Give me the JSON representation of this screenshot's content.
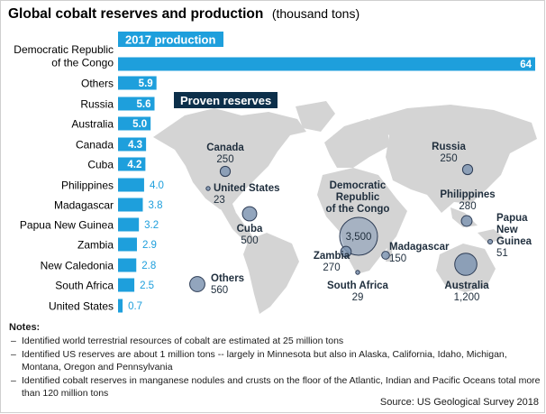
{
  "title": "Global cobalt reserves and production",
  "subtitle": "(thousand tons)",
  "colors": {
    "production": "#1e9fdc",
    "banner_reserves": "#0c2f4a",
    "map_land": "#d4d4d4",
    "bubble_fill": "#7f95b2",
    "bubble_stroke": "#2d3c55"
  },
  "chart_data": [
    {
      "type": "bar",
      "orientation": "horizontal",
      "title": "2017 production",
      "categories": [
        "Democratic Republic of the Congo",
        "Others",
        "Russia",
        "Australia",
        "Canada",
        "Cuba",
        "Philippines",
        "Madagascar",
        "Papua New Guinea",
        "Zambia",
        "New Caledonia",
        "South Africa",
        "United States"
      ],
      "category_lines": [
        [
          "Democratic Republic",
          "of the Congo"
        ],
        [
          "Others"
        ],
        [
          "Russia"
        ],
        [
          "Australia"
        ],
        [
          "Canada"
        ],
        [
          "Cuba"
        ],
        [
          "Philippines"
        ],
        [
          "Madagascar"
        ],
        [
          "Papua New Guinea"
        ],
        [
          "Zambia"
        ],
        [
          "New Caledonia"
        ],
        [
          "South Africa"
        ],
        [
          "United States"
        ]
      ],
      "values": [
        64,
        5.9,
        5.6,
        5.0,
        4.3,
        4.2,
        4.0,
        3.8,
        3.2,
        2.9,
        2.8,
        2.5,
        0.7
      ],
      "value_labels": [
        "64",
        "5.9",
        "5.6",
        "5.0",
        "4.3",
        "4.2",
        "4.0",
        "3.8",
        "3.2",
        "2.9",
        "2.8",
        "2.5",
        "0.7"
      ]
    },
    {
      "type": "scatter",
      "subtype": "bubble map",
      "title": "Proven reserves",
      "points": [
        {
          "name_lines": [
            "Canada"
          ],
          "value": 250,
          "value_label": "250"
        },
        {
          "name_lines": [
            "United States"
          ],
          "value": 23,
          "value_label": "23"
        },
        {
          "name_lines": [
            "Cuba"
          ],
          "value": 500,
          "value_label": "500"
        },
        {
          "name_lines": [
            "Others"
          ],
          "value": 560,
          "value_label": "560"
        },
        {
          "name_lines": [
            "Russia"
          ],
          "value": 250,
          "value_label": "250"
        },
        {
          "name_lines": [
            "Democratic",
            "Republic",
            "of the Congo"
          ],
          "value": 3500,
          "value_label": "3,500"
        },
        {
          "name_lines": [
            "Zambia"
          ],
          "value": 270,
          "value_label": "270"
        },
        {
          "name_lines": [
            "Madagascar"
          ],
          "value": 150,
          "value_label": "150"
        },
        {
          "name_lines": [
            "South Africa"
          ],
          "value": 29,
          "value_label": "29"
        },
        {
          "name_lines": [
            "Philippines"
          ],
          "value": 280,
          "value_label": "280"
        },
        {
          "name_lines": [
            "Papua",
            "New",
            "Guinea"
          ],
          "value": 51,
          "value_label": "51"
        },
        {
          "name_lines": [
            "Australia"
          ],
          "value": 1200,
          "value_label": "1,200"
        }
      ]
    }
  ],
  "notes": {
    "title": "Notes:",
    "items": [
      "Identified world terrestrial resources of cobalt are estimated at 25 million tons",
      "Identified US reserves are about 1 million tons -- largely in Minnesota but also in Alaska, California, Idaho, Michigan, Montana, Oregon and Pennsylvania",
      "Identified cobalt reserves in manganese nodules and crusts on the floor of the Atlantic, Indian and Pacific Oceans total more than 120 million tons"
    ]
  },
  "source": "Source: US Geological Survey 2018"
}
